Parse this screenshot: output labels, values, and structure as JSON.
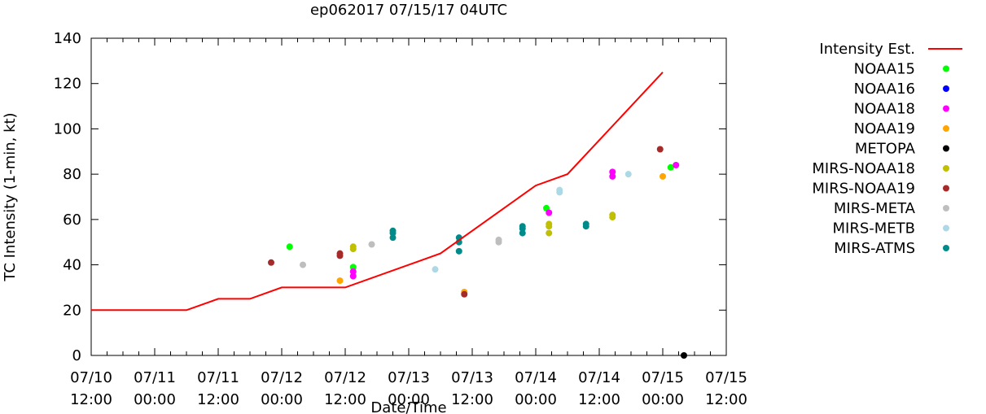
{
  "chart_data": {
    "type": "line",
    "title": "ep062017 07/15/17 04UTC",
    "xlabel": "Date/Time",
    "ylabel": "TC Intensity (1-min, kt)",
    "x_unit": "hours since 07/10 12:00",
    "xlim": [
      0,
      120
    ],
    "ylim": [
      0,
      140
    ],
    "yticks": [
      0,
      20,
      40,
      60,
      80,
      100,
      120,
      140
    ],
    "xticks": [
      {
        "x": 0,
        "line1": "07/10",
        "line2": "12:00"
      },
      {
        "x": 12,
        "line1": "07/11",
        "line2": "00:00"
      },
      {
        "x": 24,
        "line1": "07/11",
        "line2": "12:00"
      },
      {
        "x": 36,
        "line1": "07/12",
        "line2": "00:00"
      },
      {
        "x": 48,
        "line1": "07/12",
        "line2": "12:00"
      },
      {
        "x": 60,
        "line1": "07/13",
        "line2": "00:00"
      },
      {
        "x": 72,
        "line1": "07/13",
        "line2": "12:00"
      },
      {
        "x": 84,
        "line1": "07/14",
        "line2": "00:00"
      },
      {
        "x": 96,
        "line1": "07/14",
        "line2": "12:00"
      },
      {
        "x": 108,
        "line1": "07/15",
        "line2": "00:00"
      },
      {
        "x": 120,
        "line1": "07/15",
        "line2": "12:00"
      }
    ],
    "legend_position": "right",
    "line_series": {
      "name": "Intensity Est.",
      "color": "#ff0000",
      "points": [
        [
          0,
          20
        ],
        [
          18,
          20
        ],
        [
          24,
          25
        ],
        [
          30,
          25
        ],
        [
          36,
          30
        ],
        [
          48,
          30
        ],
        [
          66,
          45
        ],
        [
          84,
          75
        ],
        [
          90,
          80
        ],
        [
          108,
          125
        ]
      ]
    },
    "scatter_series": [
      {
        "name": "NOAA15",
        "color": "#00ff00",
        "points": [
          [
            37.5,
            48
          ],
          [
            49.5,
            39
          ],
          [
            86,
            65
          ],
          [
            109.5,
            83
          ]
        ]
      },
      {
        "name": "NOAA16",
        "color": "#0000ff",
        "points": []
      },
      {
        "name": "NOAA18",
        "color": "#ff00ff",
        "points": [
          [
            49.5,
            35
          ],
          [
            49.5,
            37
          ],
          [
            86.5,
            63
          ],
          [
            98.5,
            79
          ],
          [
            98.5,
            81
          ],
          [
            110.5,
            84
          ]
        ]
      },
      {
        "name": "NOAA19",
        "color": "#ffa500",
        "points": [
          [
            47,
            33
          ],
          [
            70.5,
            28
          ],
          [
            108,
            79
          ]
        ]
      },
      {
        "name": "METOPA",
        "color": "#000000",
        "points": [
          [
            112,
            0
          ]
        ]
      },
      {
        "name": "MIRS-NOAA18",
        "color": "#c0c000",
        "points": [
          [
            49.5,
            47
          ],
          [
            49.5,
            48
          ],
          [
            86.5,
            54
          ],
          [
            86.5,
            57
          ],
          [
            86.5,
            58
          ],
          [
            98.5,
            61
          ],
          [
            98.5,
            62
          ]
        ]
      },
      {
        "name": "MIRS-NOAA19",
        "color": "#a52a2a",
        "points": [
          [
            34,
            41
          ],
          [
            47,
            44
          ],
          [
            47,
            45
          ],
          [
            70.5,
            27
          ],
          [
            107.5,
            91
          ]
        ]
      },
      {
        "name": "MIRS-META",
        "color": "#bebebe",
        "points": [
          [
            40,
            40
          ],
          [
            53,
            49
          ],
          [
            77,
            50
          ],
          [
            77,
            51
          ]
        ]
      },
      {
        "name": "MIRS-METB",
        "color": "#add8e6",
        "points": [
          [
            65,
            38
          ],
          [
            88.5,
            72
          ],
          [
            88.5,
            73
          ],
          [
            101.5,
            80
          ]
        ]
      },
      {
        "name": "MIRS-ATMS",
        "color": "#008b8b",
        "points": [
          [
            57,
            52
          ],
          [
            57,
            54
          ],
          [
            57,
            55
          ],
          [
            69.5,
            46
          ],
          [
            69.5,
            50
          ],
          [
            69.5,
            52
          ],
          [
            81.5,
            54
          ],
          [
            81.5,
            56
          ],
          [
            81.5,
            57
          ],
          [
            93.5,
            57
          ],
          [
            93.5,
            58
          ]
        ]
      }
    ]
  }
}
